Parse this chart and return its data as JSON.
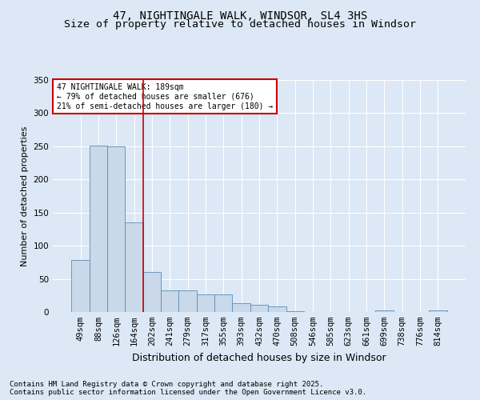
{
  "title1": "47, NIGHTINGALE WALK, WINDSOR, SL4 3HS",
  "title2": "Size of property relative to detached houses in Windsor",
  "xlabel": "Distribution of detached houses by size in Windsor",
  "ylabel": "Number of detached properties",
  "categories": [
    "49sqm",
    "88sqm",
    "126sqm",
    "164sqm",
    "202sqm",
    "241sqm",
    "279sqm",
    "317sqm",
    "355sqm",
    "393sqm",
    "432sqm",
    "470sqm",
    "508sqm",
    "546sqm",
    "585sqm",
    "623sqm",
    "661sqm",
    "699sqm",
    "738sqm",
    "776sqm",
    "814sqm"
  ],
  "values": [
    78,
    251,
    250,
    135,
    60,
    32,
    32,
    26,
    26,
    13,
    11,
    9,
    1,
    0,
    0,
    0,
    0,
    3,
    0,
    0,
    2
  ],
  "bar_color": "#c9d9ea",
  "bar_edge_color": "#5b8db8",
  "vline_x_index": 3.5,
  "vline_color": "#cc0000",
  "annotation_line1": "47 NIGHTINGALE WALK: 189sqm",
  "annotation_line2": "← 79% of detached houses are smaller (676)",
  "annotation_line3": "21% of semi-detached houses are larger (180) →",
  "annotation_box_color": "#cc0000",
  "ylim": [
    0,
    350
  ],
  "yticks": [
    0,
    50,
    100,
    150,
    200,
    250,
    300,
    350
  ],
  "footnote1": "Contains HM Land Registry data © Crown copyright and database right 2025.",
  "footnote2": "Contains public sector information licensed under the Open Government Licence v3.0.",
  "background_color": "#dce8f5",
  "plot_bg_color": "#dce8f5",
  "grid_color": "#ffffff",
  "title_fontsize": 10,
  "subtitle_fontsize": 9.5,
  "tick_fontsize": 7.5,
  "ylabel_fontsize": 8,
  "xlabel_fontsize": 9
}
